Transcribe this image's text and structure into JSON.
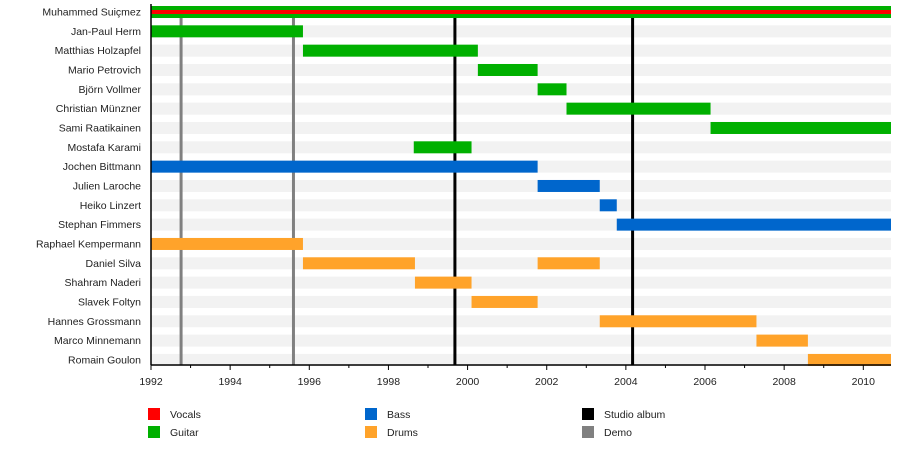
{
  "chart_data": {
    "type": "timeline",
    "xlim": [
      1992,
      2010.7
    ],
    "x_ticks": [
      1992,
      1994,
      1996,
      1998,
      2000,
      2002,
      2004,
      2006,
      2008,
      2010
    ],
    "x_tick_labels": [
      "1992",
      "1994",
      "1996",
      "1998",
      "2000",
      "2002",
      "2004",
      "2006",
      "2008",
      "2010"
    ],
    "grid": false,
    "legend_placement": "bottom",
    "colors": {
      "Vocals": "#ff0000",
      "Guitar": "#00b000",
      "Bass": "#0066cc",
      "Drums": "#ffa32a",
      "Studio album": "#000000",
      "Demo": "#808080"
    },
    "legend": [
      {
        "label": "Vocals",
        "color": "#ff0000"
      },
      {
        "label": "Guitar",
        "color": "#00b000"
      },
      {
        "label": "Bass",
        "color": "#0066cc"
      },
      {
        "label": "Drums",
        "color": "#ffa32a"
      },
      {
        "label": "Studio album",
        "color": "#000000"
      },
      {
        "label": "Demo",
        "color": "#808080"
      }
    ],
    "members": [
      {
        "name": "Muhammed Suiçmez",
        "periods": [
          {
            "role": "Guitar",
            "start": 1992,
            "end": 2010.7
          },
          {
            "role": "Vocals",
            "start": 1992,
            "end": 2010.7,
            "inner": true
          }
        ]
      },
      {
        "name": "Jan-Paul Herm",
        "periods": [
          {
            "role": "Guitar",
            "start": 1992,
            "end": 1995.84
          }
        ]
      },
      {
        "name": "Matthias Holzapfel",
        "periods": [
          {
            "role": "Guitar",
            "start": 1995.84,
            "end": 2000.26
          }
        ]
      },
      {
        "name": "Mario Petrovich",
        "periods": [
          {
            "role": "Guitar",
            "start": 2000.26,
            "end": 2001.77
          }
        ]
      },
      {
        "name": "Björn Vollmer",
        "periods": [
          {
            "role": "Guitar",
            "start": 2001.77,
            "end": 2002.5
          }
        ]
      },
      {
        "name": "Christian Münzner",
        "periods": [
          {
            "role": "Guitar",
            "start": 2002.5,
            "end": 2006.14
          }
        ]
      },
      {
        "name": "Sami Raatikainen",
        "periods": [
          {
            "role": "Guitar",
            "start": 2006.14,
            "end": 2010.7
          }
        ]
      },
      {
        "name": "Mostafa Karami",
        "periods": [
          {
            "role": "Guitar",
            "start": 1998.64,
            "end": 2000.1
          }
        ]
      },
      {
        "name": "Jochen Bittmann",
        "periods": [
          {
            "role": "Bass",
            "start": 1992,
            "end": 2001.77
          }
        ]
      },
      {
        "name": "Julien Laroche",
        "periods": [
          {
            "role": "Bass",
            "start": 2001.77,
            "end": 2003.34
          }
        ]
      },
      {
        "name": "Heiko Linzert",
        "periods": [
          {
            "role": "Bass",
            "start": 2003.34,
            "end": 2003.77
          }
        ]
      },
      {
        "name": "Stephan Fimmers",
        "periods": [
          {
            "role": "Bass",
            "start": 2003.77,
            "end": 2010.7
          }
        ]
      },
      {
        "name": "Raphael Kempermann",
        "periods": [
          {
            "role": "Drums",
            "start": 1992,
            "end": 1995.84
          }
        ]
      },
      {
        "name": "Daniel Silva",
        "periods": [
          {
            "role": "Drums",
            "start": 1995.84,
            "end": 1998.67
          },
          {
            "role": "Drums",
            "start": 2001.77,
            "end": 2003.34
          }
        ]
      },
      {
        "name": "Shahram Naderi",
        "periods": [
          {
            "role": "Drums",
            "start": 1998.67,
            "end": 2000.1
          }
        ]
      },
      {
        "name": "Slavek Foltyn",
        "periods": [
          {
            "role": "Drums",
            "start": 2000.1,
            "end": 2001.77
          }
        ]
      },
      {
        "name": "Hannes Grossmann",
        "periods": [
          {
            "role": "Drums",
            "start": 2003.34,
            "end": 2007.3
          }
        ]
      },
      {
        "name": "Marco Minnemann",
        "periods": [
          {
            "role": "Drums",
            "start": 2007.3,
            "end": 2008.6
          }
        ]
      },
      {
        "name": "Romain Goulon",
        "periods": [
          {
            "role": "Drums",
            "start": 2008.6,
            "end": 2010.7
          }
        ]
      }
    ],
    "releases": [
      {
        "type": "Demo",
        "date": 1992.76
      },
      {
        "type": "Demo",
        "date": 1995.6
      },
      {
        "type": "Studio album",
        "date": 1999.68
      },
      {
        "type": "Studio album",
        "date": 2004.17
      }
    ]
  }
}
